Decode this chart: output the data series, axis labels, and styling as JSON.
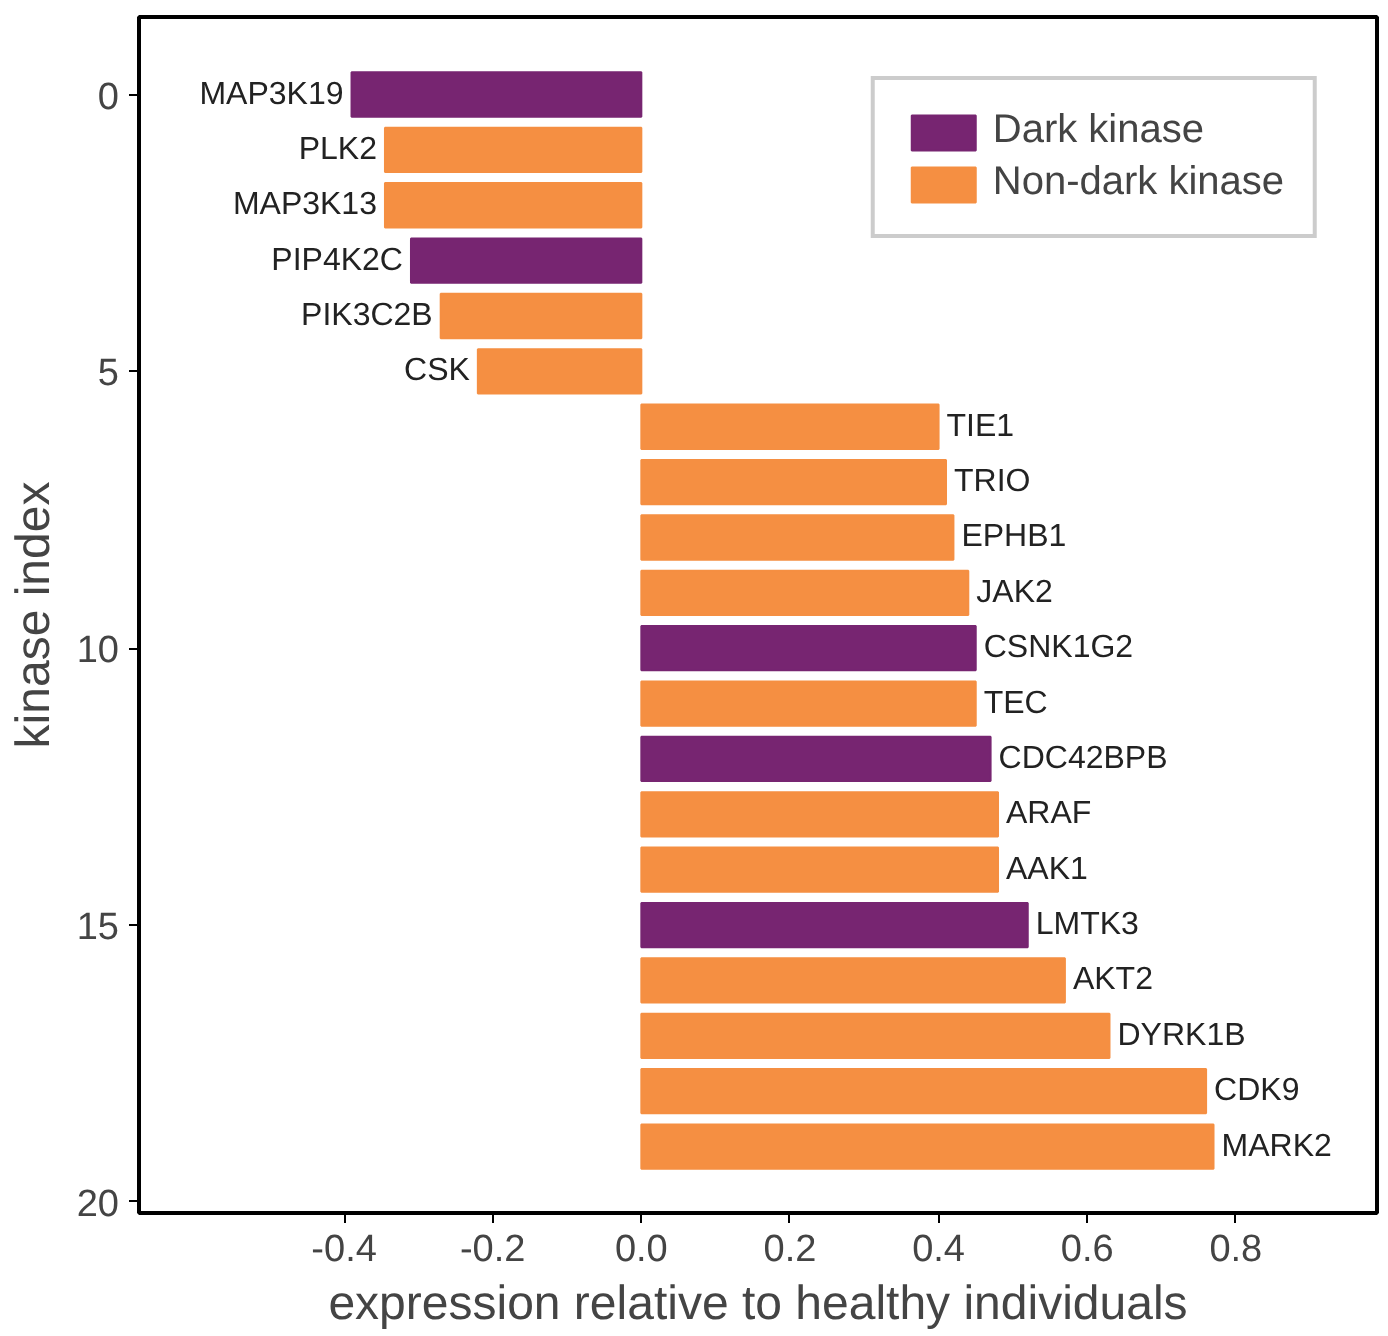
{
  "chart_data": {
    "type": "bar",
    "orientation": "horizontal",
    "xlabel": "expression relative to healthy individuals",
    "ylabel": "kinase index",
    "xlim": [
      -0.676,
      0.99
    ],
    "xticks": [
      -0.4,
      -0.2,
      {
        "value": 0,
        "label": "0.0"
      },
      0.2,
      0.4,
      0.6,
      0.8
    ],
    "ylim": [
      20.2,
      -1.4
    ],
    "yticks": [
      0,
      5,
      10,
      15,
      20
    ],
    "grid": false,
    "legend": "top right",
    "series": [
      {
        "name": "Dark kinase",
        "color": "#772571",
        "x": [
          0,
          3,
          10,
          12,
          15
        ],
        "values": [
          -0.39,
          -0.31,
          0.45,
          0.47,
          0.52
        ]
      },
      {
        "name": "Non-dark kinase",
        "color": "#f58f42",
        "x": [
          1,
          2,
          4,
          5,
          6,
          7,
          8,
          9,
          11,
          13,
          14,
          16,
          17,
          18,
          19
        ],
        "values": [
          -0.345,
          -0.345,
          -0.27,
          -0.22,
          0.4,
          0.41,
          0.42,
          0.44,
          0.45,
          0.48,
          0.48,
          0.57,
          0.63,
          0.76,
          0.77
        ]
      }
    ],
    "annotations": [
      {
        "text": "MAP3K19",
        "x": -0.39,
        "y": 0
      },
      {
        "text": "PLK2",
        "x": -0.345,
        "y": 1
      },
      {
        "text": "MAP3K13",
        "x": -0.345,
        "y": 2
      },
      {
        "text": "PIP4K2C",
        "x": -0.31,
        "y": 3
      },
      {
        "text": "PIK3C2B",
        "x": -0.27,
        "y": 4
      },
      {
        "text": "CSK",
        "x": -0.22,
        "y": 5
      },
      {
        "text": "TIE1",
        "x": 0.4,
        "y": 6
      },
      {
        "text": "TRIO",
        "x": 0.41,
        "y": 7
      },
      {
        "text": "EPHB1",
        "x": 0.42,
        "y": 8
      },
      {
        "text": "JAK2",
        "x": 0.44,
        "y": 9
      },
      {
        "text": "CSNK1G2",
        "x": 0.45,
        "y": 10
      },
      {
        "text": "TEC",
        "x": 0.45,
        "y": 11
      },
      {
        "text": "CDC42BPB",
        "x": 0.47,
        "y": 12
      },
      {
        "text": "ARAF",
        "x": 0.48,
        "y": 13
      },
      {
        "text": "AAK1",
        "x": 0.48,
        "y": 14
      },
      {
        "text": "LMTK3",
        "x": 0.52,
        "y": 15
      },
      {
        "text": "AKT2",
        "x": 0.57,
        "y": 16
      },
      {
        "text": "DYRK1B",
        "x": 0.63,
        "y": 17
      },
      {
        "text": "CDK9",
        "x": 0.76,
        "y": 18
      },
      {
        "text": "MARK2",
        "x": 0.77,
        "y": 19
      }
    ]
  }
}
